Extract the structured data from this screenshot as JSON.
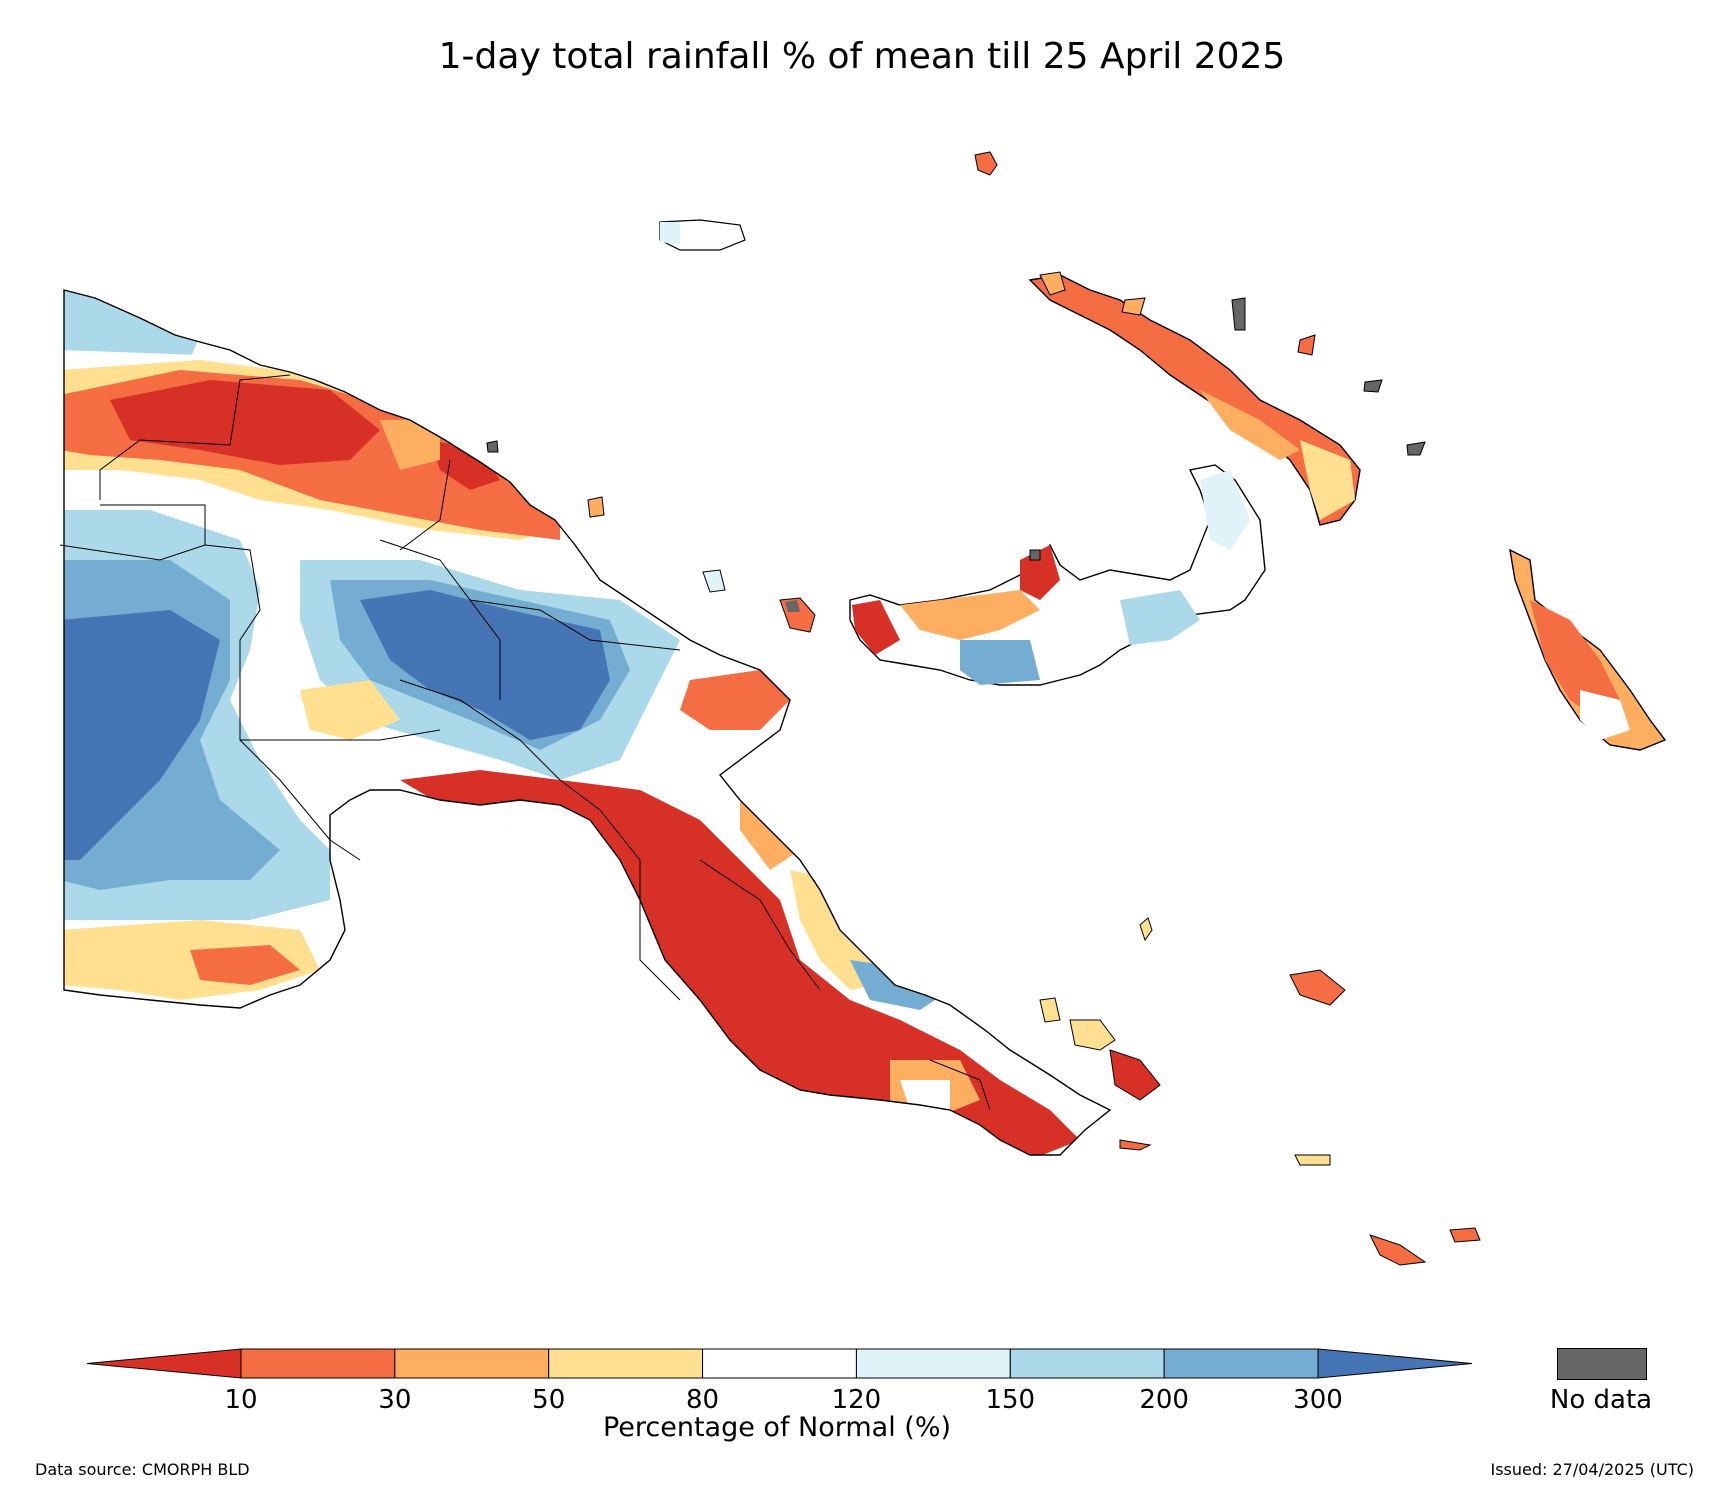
{
  "title": "1-day total rainfall % of mean till 25 April 2025",
  "colorbar": {
    "label": "Percentage of Normal (%)",
    "ticks": [
      "10",
      "30",
      "50",
      "80",
      "120",
      "150",
      "200",
      "300"
    ],
    "colors": [
      "#d73027",
      "#f46d43",
      "#fdae61",
      "#fee090",
      "#ffffff",
      "#e0f3f8",
      "#abd9e9",
      "#74add1",
      "#4575b4"
    ],
    "no_data_label": "No data",
    "no_data_color": "#666666"
  },
  "footer": {
    "source": "Data source: CMORPH BLD",
    "issued": "Issued: 27/04/2025 (UTC)"
  }
}
